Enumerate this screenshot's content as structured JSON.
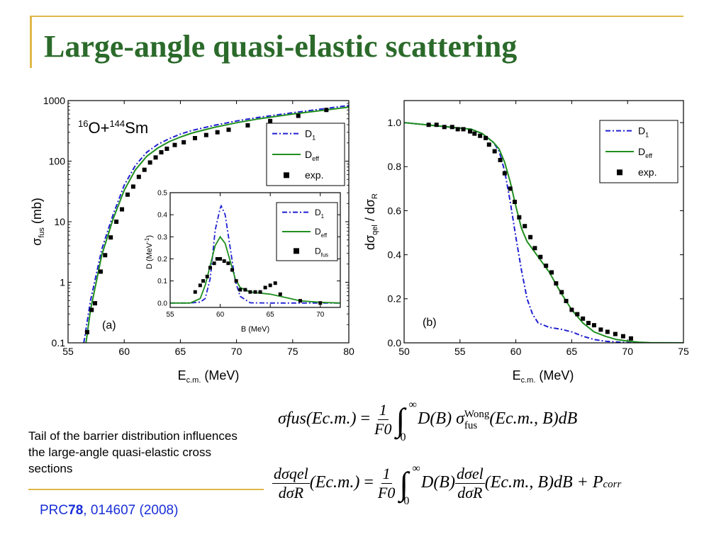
{
  "slide": {
    "title": "Large-angle quasi-elastic scattering",
    "note": "Tail of the barrier distribution influences the large-angle quasi-elastic cross sections",
    "ref_prefix": "PRC",
    "ref_volume": "78",
    "ref_rest": ", 014607 (2008)",
    "colors": {
      "accent": "#e0b94a",
      "title": "#2b6a2b",
      "ref": "#1a2fd6",
      "d1": "#1f1fd1",
      "deff": "#1f8f1f"
    }
  },
  "chart_data": [
    {
      "type": "line",
      "panel_label": "(a)",
      "system_label": "16O+144Sm",
      "xlabel": "Ec.m. (MeV)",
      "ylabel": "σfus (mb)",
      "xlim": [
        55,
        80
      ],
      "ylim": [
        0.1,
        1000
      ],
      "yscale": "log",
      "xticks": [
        "55",
        "60",
        "65",
        "70",
        "75",
        "80"
      ],
      "yticks": [
        "0.1",
        "1",
        "10",
        "100",
        "1000"
      ],
      "legend": [
        "D1",
        "Deff",
        "exp."
      ],
      "legend_position": "top-right",
      "series": [
        {
          "name": "D1",
          "style": "dash-dot",
          "color": "#1f1fd1",
          "x": [
            56.4,
            57,
            58,
            59,
            60,
            61,
            62,
            63,
            64,
            65,
            66,
            68,
            70,
            72,
            75,
            80
          ],
          "y": [
            0.1,
            0.5,
            3.5,
            13,
            40,
            85,
            140,
            190,
            235,
            280,
            320,
            390,
            460,
            530,
            630,
            830
          ]
        },
        {
          "name": "Deff",
          "style": "solid",
          "color": "#1f8f1f",
          "x": [
            56.6,
            57,
            58,
            59,
            60,
            61,
            62,
            63,
            64,
            65,
            66,
            68,
            70,
            72,
            75,
            80
          ],
          "y": [
            0.1,
            0.35,
            2.8,
            11,
            33,
            72,
            120,
            165,
            210,
            250,
            290,
            360,
            430,
            500,
            600,
            780
          ]
        },
        {
          "name": "exp.",
          "style": "marker",
          "x": [
            56.7,
            57.1,
            57.4,
            57.9,
            58.3,
            58.8,
            59.3,
            59.8,
            60.3,
            60.8,
            61.3,
            61.8,
            62.3,
            62.8,
            63.3,
            63.8,
            64.5,
            65.3,
            66.3,
            67.3,
            68.3,
            69.3,
            71,
            73,
            75.5,
            78
          ],
          "y": [
            0.15,
            0.35,
            0.45,
            1.5,
            2.8,
            5.5,
            10,
            16,
            28,
            38,
            55,
            72,
            95,
            115,
            140,
            160,
            185,
            205,
            240,
            270,
            300,
            330,
            390,
            460,
            560,
            700
          ]
        }
      ]
    },
    {
      "type": "line",
      "inset": true,
      "xlabel": "B (MeV)",
      "ylabel": "D (MeV-1)",
      "xlim": [
        55,
        72
      ],
      "ylim": [
        -0.02,
        0.5
      ],
      "xticks": [
        "55",
        "60",
        "65",
        "70"
      ],
      "yticks": [
        "0.0",
        "0.1",
        "0.2",
        "0.3",
        "0.4",
        "0.5"
      ],
      "legend": [
        "D1",
        "Deff",
        "Dfus"
      ],
      "series": [
        {
          "name": "D1",
          "style": "dash-dot",
          "color": "#1f1fd1",
          "mu": 60.1,
          "sigma": 0.95,
          "amp": 0.44,
          "x": [
            55,
            57,
            58,
            58.5,
            59,
            59.5,
            60,
            60.1,
            60.5,
            61,
            61.5,
            62,
            63,
            65,
            72
          ],
          "y": [
            0,
            0,
            0.004,
            0.02,
            0.11,
            0.33,
            0.43,
            0.44,
            0.4,
            0.25,
            0.1,
            0.03,
            0.001,
            0,
            0
          ]
        },
        {
          "name": "Deff",
          "style": "solid",
          "color": "#1f8f1f",
          "x": [
            55,
            57,
            58,
            58.5,
            59,
            59.5,
            60,
            60.5,
            61,
            61.5,
            62,
            63,
            64,
            65,
            66,
            67,
            68,
            70,
            72
          ],
          "y": [
            0,
            0,
            0.02,
            0.08,
            0.17,
            0.26,
            0.3,
            0.27,
            0.19,
            0.11,
            0.07,
            0.05,
            0.045,
            0.04,
            0.03,
            0.02,
            0.01,
            0.003,
            0
          ]
        },
        {
          "name": "Dfus",
          "style": "marker",
          "x": [
            57.5,
            58,
            58.3,
            58.7,
            59,
            59.4,
            59.7,
            60,
            60.4,
            60.8,
            61.2,
            61.6,
            62,
            62.5,
            63,
            63.5,
            64,
            64.5,
            65,
            65.5,
            66,
            68,
            70
          ],
          "y": [
            0.05,
            0.08,
            0.1,
            0.12,
            0.16,
            0.18,
            0.2,
            0.2,
            0.19,
            0.18,
            0.15,
            0.1,
            0.06,
            0.06,
            0.05,
            0.05,
            0.05,
            0.07,
            0.08,
            0.09,
            0.04,
            0.01,
            0.0
          ]
        }
      ]
    },
    {
      "type": "line",
      "panel_label": "(b)",
      "xlabel": "Ec.m. (MeV)",
      "ylabel": "dσqel / dσR",
      "xlim": [
        50,
        75
      ],
      "ylim": [
        0,
        1.1
      ],
      "xticks": [
        "50",
        "55",
        "60",
        "65",
        "70",
        "75"
      ],
      "yticks": [
        "0.0",
        "0.2",
        "0.4",
        "0.6",
        "0.8",
        "1.0"
      ],
      "legend": [
        "D1",
        "Deff",
        "exp."
      ],
      "legend_position": "top-right",
      "series": [
        {
          "name": "D1",
          "style": "dash-dot",
          "color": "#1f1fd1",
          "x": [
            50,
            54,
            56,
            57,
            58,
            58.5,
            59,
            59.5,
            60,
            60.5,
            61,
            61.5,
            62,
            63,
            64,
            65,
            66,
            67,
            68,
            70,
            72,
            75
          ],
          "y": [
            1.0,
            0.98,
            0.97,
            0.95,
            0.91,
            0.87,
            0.78,
            0.64,
            0.48,
            0.33,
            0.2,
            0.13,
            0.09,
            0.07,
            0.062,
            0.05,
            0.03,
            0.015,
            0.007,
            0.001,
            0,
            0
          ]
        },
        {
          "name": "Deff",
          "style": "solid",
          "color": "#1f8f1f",
          "x": [
            50,
            54,
            56,
            57,
            58,
            58.5,
            59,
            59.5,
            60,
            60.5,
            61,
            62,
            63,
            64,
            65,
            66,
            67,
            68,
            69,
            70,
            71,
            72,
            75
          ],
          "y": [
            1.0,
            0.98,
            0.97,
            0.95,
            0.91,
            0.88,
            0.82,
            0.73,
            0.62,
            0.52,
            0.46,
            0.39,
            0.32,
            0.23,
            0.15,
            0.09,
            0.05,
            0.03,
            0.015,
            0.008,
            0.003,
            0.001,
            0
          ]
        },
        {
          "name": "exp.",
          "style": "marker",
          "x": [
            52.2,
            52.9,
            53.6,
            54.3,
            54.8,
            55.3,
            55.9,
            56.3,
            56.8,
            57.3,
            57.6,
            58.1,
            58.6,
            59,
            59.5,
            59.9,
            60.3,
            60.8,
            61.3,
            61.7,
            62.2,
            62.7,
            63.2,
            63.6,
            64.1,
            64.5,
            65,
            65.5,
            66,
            66.5,
            67,
            67.6,
            68.2,
            68.9,
            69.6,
            70.3
          ],
          "y": [
            0.99,
            0.99,
            0.98,
            0.98,
            0.97,
            0.97,
            0.96,
            0.95,
            0.94,
            0.93,
            0.9,
            0.87,
            0.83,
            0.77,
            0.7,
            0.64,
            0.57,
            0.53,
            0.48,
            0.43,
            0.39,
            0.35,
            0.32,
            0.27,
            0.23,
            0.19,
            0.15,
            0.13,
            0.11,
            0.09,
            0.08,
            0.06,
            0.05,
            0.04,
            0.03,
            0.02
          ]
        }
      ]
    }
  ],
  "equations": {
    "eq1": {
      "lhs": "σfus(Ec.m.)",
      "frac_num": "1",
      "frac_den": "F0",
      "int_upper": "∞",
      "int_lower": "0",
      "body": "D(B) σ",
      "sup": "Wong",
      "sub": "fus",
      "args": "(Ec.m., B)dB"
    },
    "eq2": {
      "lhs_num": "dσqel",
      "lhs_den": "dσR",
      "lhs_arg": "(Ec.m.)",
      "frac_num": "1",
      "frac_den": "F0",
      "int_upper": "∞",
      "int_lower": "0",
      "body": "D(B)",
      "mid_num": "dσel",
      "mid_den": "dσR",
      "args": "(Ec.m., B)dB + P",
      "tail_sub": "corr"
    }
  }
}
